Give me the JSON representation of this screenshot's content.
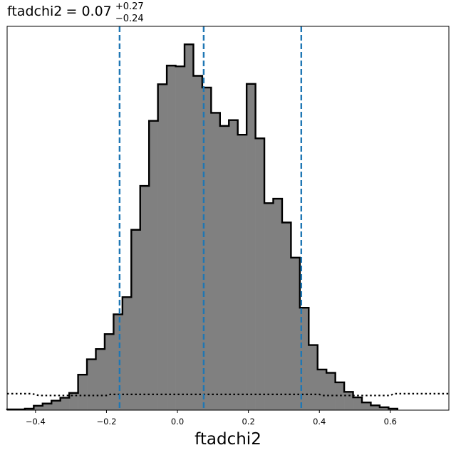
{
  "chart_data": {
    "type": "histogram",
    "title": {
      "param": "ftadchi2",
      "median": "0.07",
      "upper_err": "+0.27",
      "lower_err": "−0.24"
    },
    "xlabel": "ftadchi2",
    "xlim": [
      -0.48,
      0.765
    ],
    "ylim": [
      0,
      1.0
    ],
    "x_ticks": [
      -0.4,
      -0.2,
      0.0,
      0.2,
      0.4,
      0.6
    ],
    "x_tick_labels": [
      "−0.4",
      "−0.2",
      "0.0",
      "0.2",
      "0.4",
      "0.6"
    ],
    "bin_edges": [
      -0.48,
      -0.455,
      -0.43,
      -0.405,
      -0.38,
      -0.355,
      -0.33,
      -0.305,
      -0.28,
      -0.255,
      -0.23,
      -0.205,
      -0.18,
      -0.155,
      -0.13,
      -0.105,
      -0.08,
      -0.055,
      -0.03,
      -0.005,
      0.02,
      0.045,
      0.07,
      0.095,
      0.12,
      0.145,
      0.17,
      0.195,
      0.22,
      0.245,
      0.27,
      0.295,
      0.32,
      0.345,
      0.37,
      0.395,
      0.42,
      0.445,
      0.47,
      0.495,
      0.52,
      0.545,
      0.57,
      0.595,
      0.62
    ],
    "counts": [
      0.002,
      0.002,
      0.004,
      0.012,
      0.018,
      0.026,
      0.034,
      0.047,
      0.097,
      0.139,
      0.167,
      0.208,
      0.262,
      0.309,
      0.493,
      0.613,
      0.791,
      0.891,
      0.942,
      0.94,
      1.0,
      0.914,
      0.882,
      0.813,
      0.777,
      0.793,
      0.753,
      0.892,
      0.743,
      0.566,
      0.578,
      0.513,
      0.417,
      0.28,
      0.178,
      0.111,
      0.102,
      0.076,
      0.05,
      0.035,
      0.021,
      0.013,
      0.008,
      0.004
    ],
    "quantile_lines": [
      -0.163,
      0.074,
      0.349
    ],
    "quantile_color": "#1f77b4",
    "fill_color": "#808080",
    "edge_color": "#000000",
    "prior": {
      "style": "dotted",
      "points": [
        [
          -0.48,
          0.045
        ],
        [
          -0.41,
          0.045
        ],
        [
          -0.39,
          0.04
        ],
        [
          -0.2,
          0.04
        ],
        [
          -0.19,
          0.043
        ],
        [
          0.4,
          0.043
        ],
        [
          0.41,
          0.04
        ],
        [
          0.6,
          0.04
        ],
        [
          0.61,
          0.045
        ],
        [
          0.765,
          0.045
        ]
      ]
    }
  }
}
